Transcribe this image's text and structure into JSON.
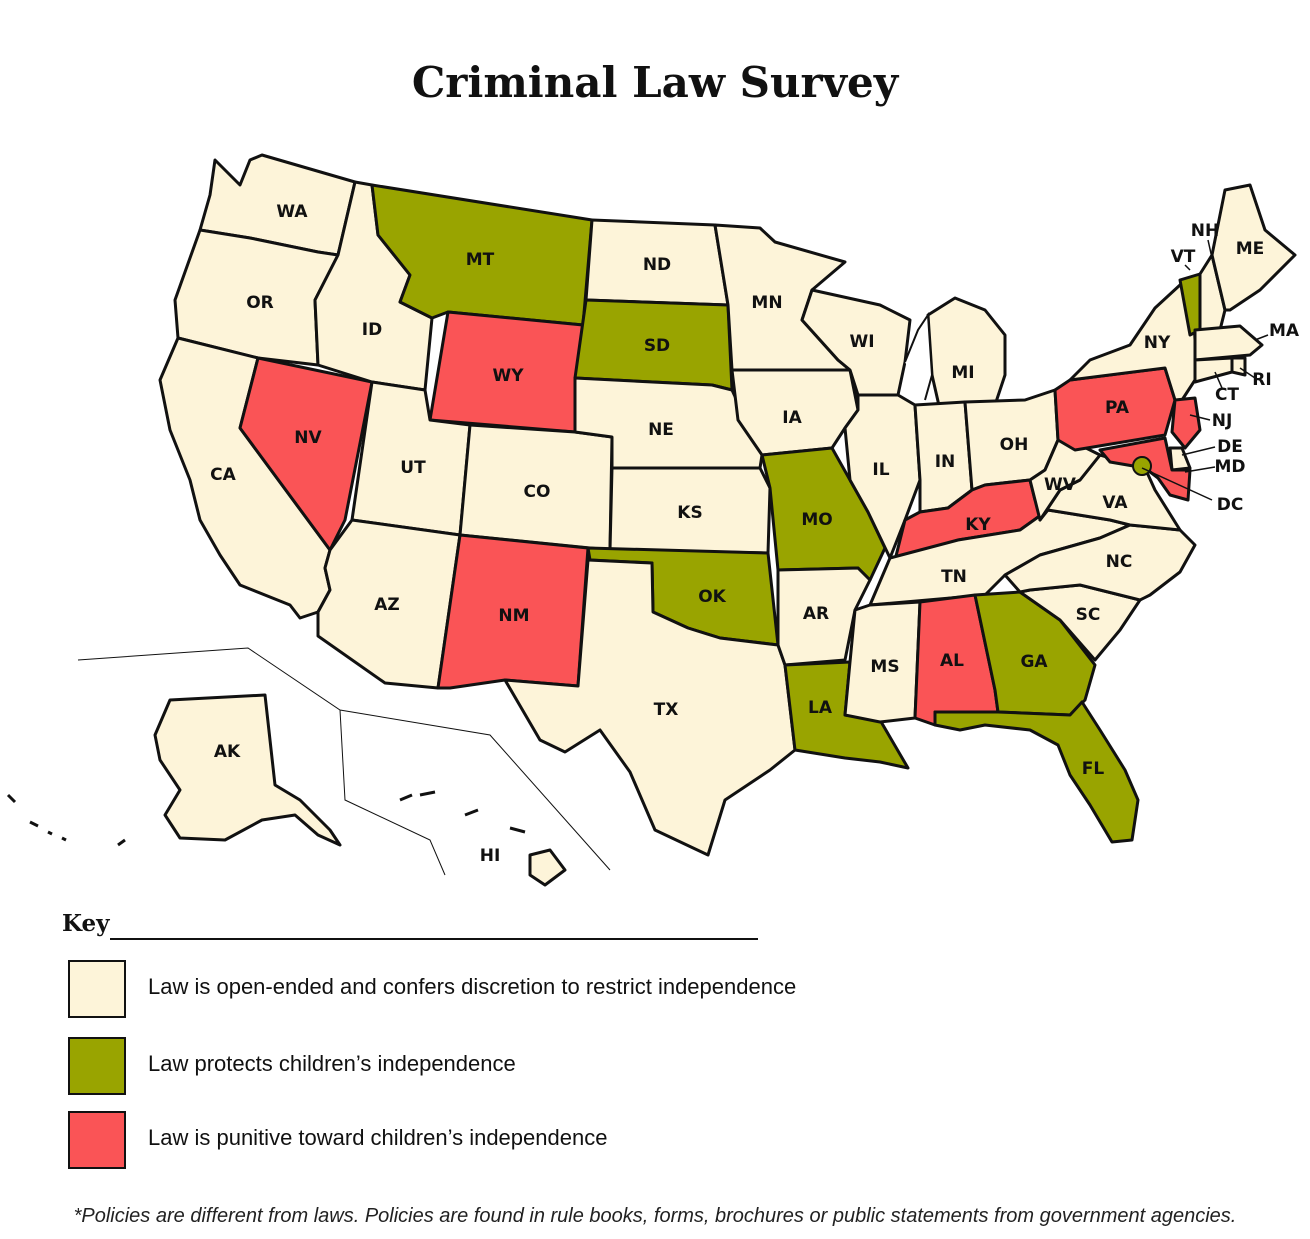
{
  "title": "Criminal Law Survey",
  "colors": {
    "open_ended": "#FDF4D9",
    "protects": "#99A400",
    "punitive": "#FA5456",
    "stroke": "#111111"
  },
  "key": {
    "heading": "Key",
    "items": [
      {
        "category": "open_ended",
        "label": "Law is open-ended and confers discretion to restrict independence"
      },
      {
        "category": "protects",
        "label": "Law protects children’s independence"
      },
      {
        "category": "punitive",
        "label": "Law is punitive toward children’s independence"
      }
    ]
  },
  "footnote": "*Policies are different from laws. Policies are found in rule books, forms, brochures or public statements from government agencies.",
  "states": [
    {
      "abbr": "WA",
      "category": "open_ended"
    },
    {
      "abbr": "OR",
      "category": "open_ended"
    },
    {
      "abbr": "CA",
      "category": "open_ended"
    },
    {
      "abbr": "NV",
      "category": "punitive"
    },
    {
      "abbr": "ID",
      "category": "open_ended"
    },
    {
      "abbr": "MT",
      "category": "protects"
    },
    {
      "abbr": "WY",
      "category": "punitive"
    },
    {
      "abbr": "UT",
      "category": "open_ended"
    },
    {
      "abbr": "AZ",
      "category": "open_ended"
    },
    {
      "abbr": "CO",
      "category": "open_ended"
    },
    {
      "abbr": "NM",
      "category": "punitive"
    },
    {
      "abbr": "ND",
      "category": "open_ended"
    },
    {
      "abbr": "SD",
      "category": "protects"
    },
    {
      "abbr": "NE",
      "category": "open_ended"
    },
    {
      "abbr": "KS",
      "category": "open_ended"
    },
    {
      "abbr": "OK",
      "category": "protects"
    },
    {
      "abbr": "TX",
      "category": "open_ended"
    },
    {
      "abbr": "MN",
      "category": "open_ended"
    },
    {
      "abbr": "IA",
      "category": "open_ended"
    },
    {
      "abbr": "MO",
      "category": "protects"
    },
    {
      "abbr": "AR",
      "category": "open_ended"
    },
    {
      "abbr": "LA",
      "category": "protects"
    },
    {
      "abbr": "WI",
      "category": "open_ended"
    },
    {
      "abbr": "IL",
      "category": "open_ended"
    },
    {
      "abbr": "MI",
      "category": "open_ended"
    },
    {
      "abbr": "IN",
      "category": "open_ended"
    },
    {
      "abbr": "OH",
      "category": "open_ended"
    },
    {
      "abbr": "KY",
      "category": "punitive"
    },
    {
      "abbr": "TN",
      "category": "open_ended"
    },
    {
      "abbr": "MS",
      "category": "open_ended"
    },
    {
      "abbr": "AL",
      "category": "punitive"
    },
    {
      "abbr": "GA",
      "category": "protects"
    },
    {
      "abbr": "FL",
      "category": "protects"
    },
    {
      "abbr": "SC",
      "category": "open_ended"
    },
    {
      "abbr": "NC",
      "category": "open_ended"
    },
    {
      "abbr": "VA",
      "category": "open_ended"
    },
    {
      "abbr": "WV",
      "category": "open_ended"
    },
    {
      "abbr": "PA",
      "category": "punitive"
    },
    {
      "abbr": "NY",
      "category": "open_ended"
    },
    {
      "abbr": "VT",
      "category": "protects"
    },
    {
      "abbr": "NH",
      "category": "open_ended"
    },
    {
      "abbr": "ME",
      "category": "open_ended"
    },
    {
      "abbr": "MA",
      "category": "open_ended"
    },
    {
      "abbr": "RI",
      "category": "open_ended"
    },
    {
      "abbr": "CT",
      "category": "open_ended"
    },
    {
      "abbr": "NJ",
      "category": "punitive"
    },
    {
      "abbr": "DE",
      "category": "open_ended"
    },
    {
      "abbr": "MD",
      "category": "punitive"
    },
    {
      "abbr": "DC",
      "category": "protects"
    },
    {
      "abbr": "AK",
      "category": "open_ended"
    },
    {
      "abbr": "HI",
      "category": "open_ended"
    }
  ]
}
